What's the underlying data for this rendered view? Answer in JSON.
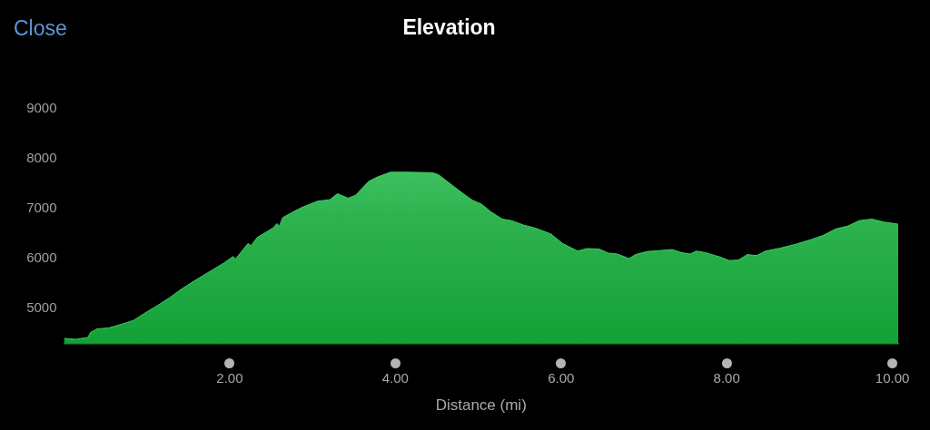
{
  "chart_data": {
    "type": "area",
    "title": "Elevation",
    "xlabel": "Distance (mi)",
    "annotations": [
      "Close"
    ],
    "x": [
      0,
      0.14,
      0.29,
      0.32,
      0.4,
      0.54,
      0.69,
      0.84,
      0.98,
      1.13,
      1.27,
      1.42,
      1.6,
      1.78,
      1.93,
      2.04,
      2.07,
      2.22,
      2.26,
      2.33,
      2.52,
      2.57,
      2.6,
      2.64,
      2.77,
      2.88,
      3.06,
      3.21,
      3.3,
      3.43,
      3.52,
      3.68,
      3.79,
      3.94,
      4.16,
      4.45,
      4.52,
      4.67,
      4.82,
      4.93,
      5.04,
      5.15,
      5.29,
      5.4,
      5.55,
      5.69,
      5.88,
      6.02,
      6.2,
      6.31,
      6.46,
      6.57,
      6.68,
      6.82,
      6.9,
      7.04,
      7.19,
      7.34,
      7.45,
      7.56,
      7.63,
      7.74,
      7.92,
      8.03,
      8.14,
      8.25,
      8.36,
      8.47,
      8.65,
      8.84,
      9.02,
      9.16,
      9.31,
      9.46,
      9.6,
      9.75,
      9.9,
      10.07
    ],
    "values": [
      4400,
      4380,
      4420,
      4520,
      4590,
      4610,
      4680,
      4760,
      4910,
      5060,
      5210,
      5390,
      5580,
      5760,
      5910,
      6040,
      5990,
      6300,
      6260,
      6420,
      6610,
      6700,
      6650,
      6820,
      6940,
      7030,
      7150,
      7180,
      7300,
      7210,
      7270,
      7550,
      7640,
      7730,
      7730,
      7720,
      7680,
      7490,
      7300,
      7170,
      7090,
      6940,
      6790,
      6760,
      6670,
      6610,
      6490,
      6300,
      6150,
      6200,
      6190,
      6110,
      6090,
      6000,
      6080,
      6140,
      6160,
      6180,
      6120,
      6090,
      6150,
      6120,
      6030,
      5960,
      5970,
      6080,
      6060,
      6150,
      6210,
      6290,
      6380,
      6460,
      6590,
      6650,
      6760,
      6790,
      6730,
      6690
    ],
    "color": "#2fb350",
    "xlim": [
      0,
      10.07
    ],
    "xticks": [
      {
        "value": 2,
        "label": "2.00"
      },
      {
        "value": 4,
        "label": "4.00"
      },
      {
        "value": 6,
        "label": "6.00"
      },
      {
        "value": 8,
        "label": "8.00"
      },
      {
        "value": 10,
        "label": "10.00"
      }
    ],
    "ylim": [
      4300,
      9000
    ],
    "yticks": [
      5000,
      6000,
      7000,
      8000,
      9000
    ]
  }
}
